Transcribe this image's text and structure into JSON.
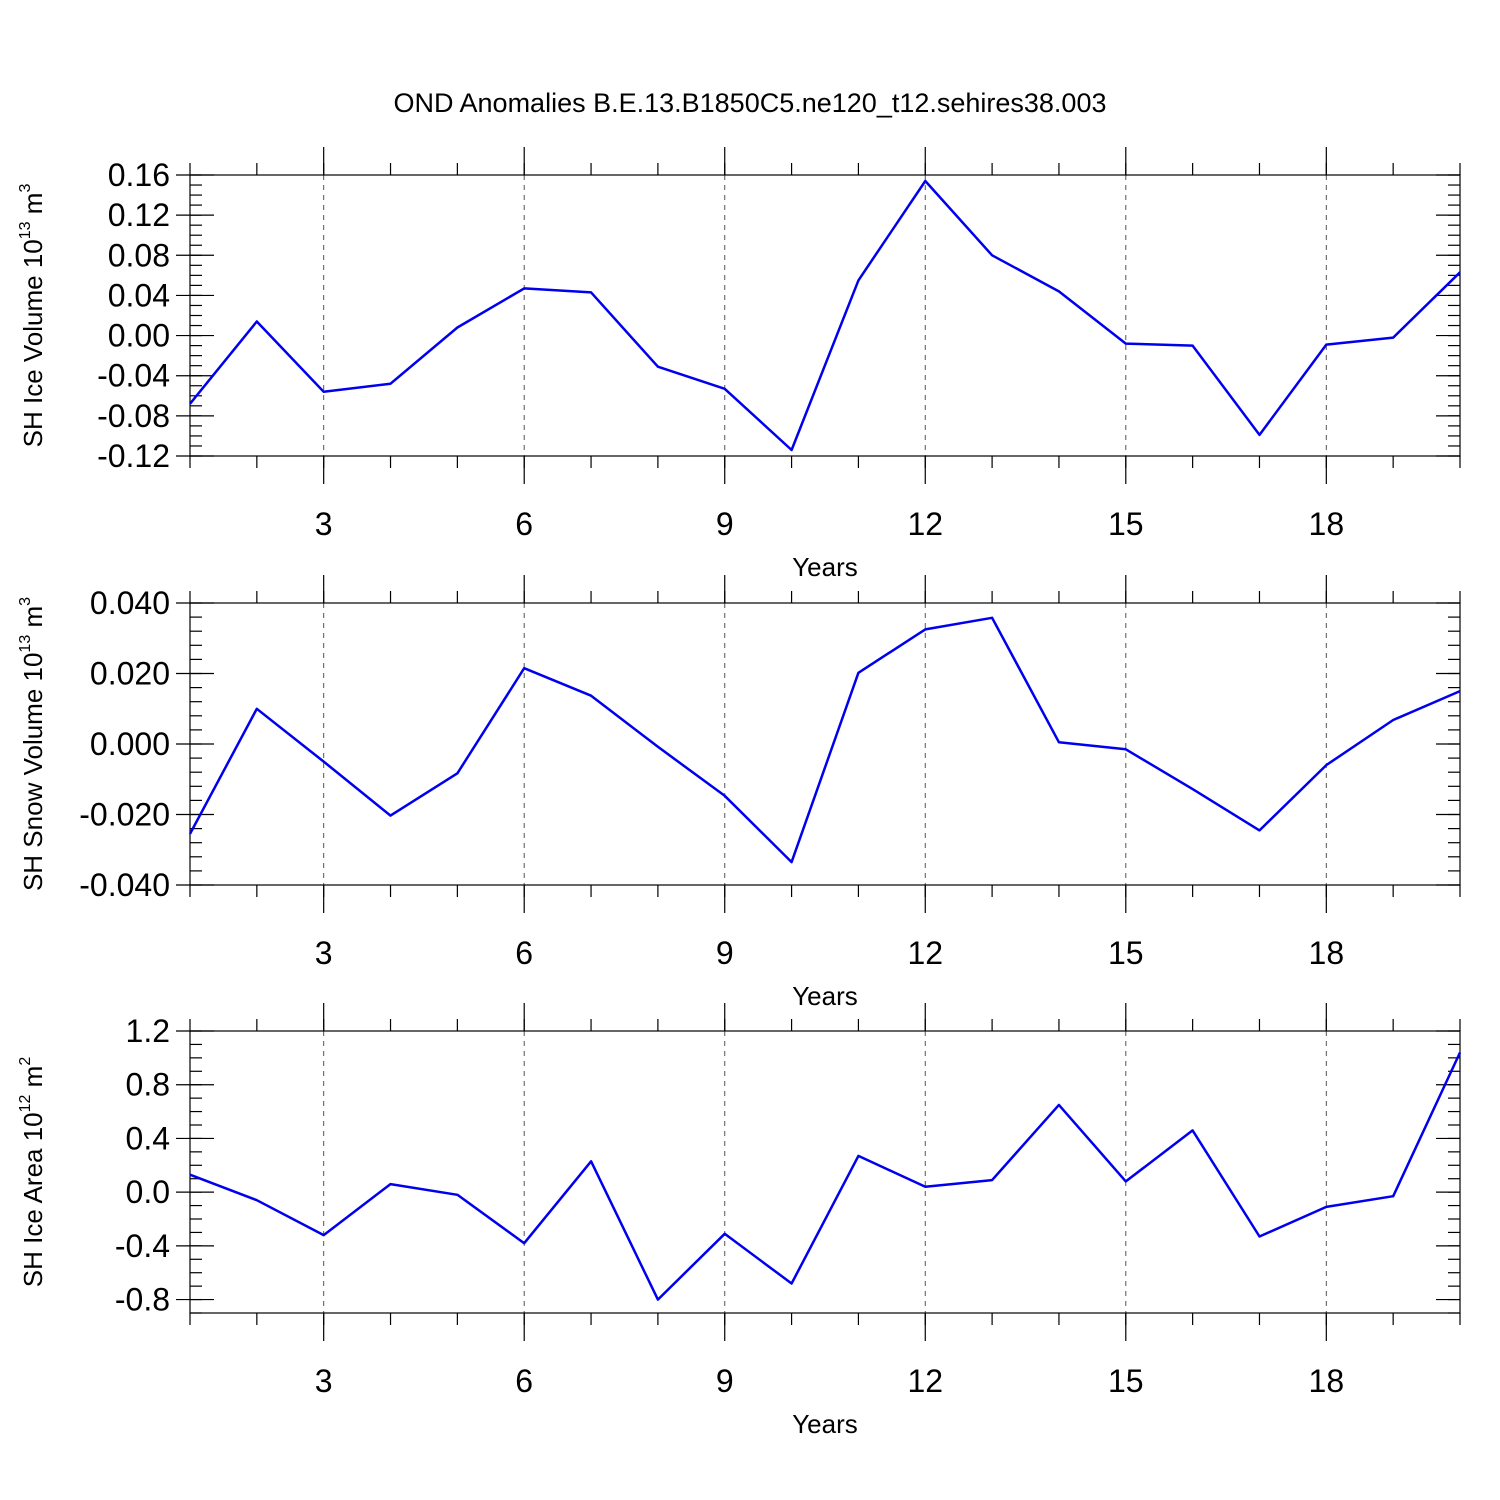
{
  "title": "OND Anomalies B.E.13.B1850C5.ne120_t12.sehires38.003",
  "chart_data": [
    {
      "type": "line",
      "id": "ice-volume",
      "xlabel": "Years",
      "ylabel": {
        "text": "SH Ice Volume 10",
        "exp": "13",
        "unit": " m",
        "unit_exp": "3"
      },
      "xlim": [
        1,
        20
      ],
      "ylim": [
        -0.12,
        0.16
      ],
      "xticks": [
        3,
        6,
        9,
        12,
        15,
        18
      ],
      "xtick_labels": [
        "3",
        "6",
        "9",
        "12",
        "15",
        "18"
      ],
      "yticks": [
        -0.12,
        -0.08,
        -0.04,
        0.0,
        0.04,
        0.08,
        0.12,
        0.16
      ],
      "ytick_labels": [
        "-0.12",
        "-0.08",
        "-0.04",
        "0.00",
        "0.04",
        "0.08",
        "0.12",
        "0.16"
      ],
      "y_minor_step": 0.01,
      "grid": "x-dashed",
      "color": "#0000ee",
      "x": [
        1,
        2,
        3,
        4,
        5,
        6,
        7,
        8,
        9,
        10,
        11,
        12,
        13,
        14,
        15,
        16,
        17,
        18,
        19,
        20
      ],
      "values": [
        -0.068,
        0.014,
        -0.056,
        -0.048,
        0.008,
        0.047,
        0.043,
        -0.031,
        -0.053,
        -0.114,
        0.055,
        0.154,
        0.08,
        0.044,
        -0.008,
        -0.01,
        -0.099,
        -0.009,
        -0.002,
        0.063
      ]
    },
    {
      "type": "line",
      "id": "snow-volume",
      "xlabel": "Years",
      "ylabel": {
        "text": "SH Snow Volume 10",
        "exp": "13",
        "unit": " m",
        "unit_exp": "3"
      },
      "xlim": [
        1,
        20
      ],
      "ylim": [
        -0.04,
        0.04
      ],
      "xticks": [
        3,
        6,
        9,
        12,
        15,
        18
      ],
      "xtick_labels": [
        "3",
        "6",
        "9",
        "12",
        "15",
        "18"
      ],
      "yticks": [
        -0.04,
        -0.02,
        0.0,
        0.02,
        0.04
      ],
      "ytick_labels": [
        "-0.040",
        "-0.020",
        "0.000",
        "0.020",
        "0.040"
      ],
      "y_minor_step": 0.004,
      "grid": "x-dashed",
      "color": "#0000ee",
      "x": [
        1,
        2,
        3,
        4,
        5,
        6,
        7,
        8,
        9,
        10,
        11,
        12,
        13,
        14,
        15,
        16,
        17,
        18,
        19,
        20
      ],
      "values": [
        -0.0255,
        0.01,
        -0.005,
        -0.0203,
        -0.0083,
        0.0215,
        0.0137,
        -0.0008,
        -0.0147,
        -0.0335,
        0.0202,
        0.0325,
        0.0358,
        0.0005,
        -0.0015,
        -0.0128,
        -0.0245,
        -0.006,
        0.0068,
        0.015
      ]
    },
    {
      "type": "line",
      "id": "ice-area",
      "xlabel": "Years",
      "ylabel": {
        "text": "SH Ice Area 10",
        "exp": "12",
        "unit": " m",
        "unit_exp": "2"
      },
      "xlim": [
        1,
        20
      ],
      "ylim": [
        -0.9,
        1.2
      ],
      "xticks": [
        3,
        6,
        9,
        12,
        15,
        18
      ],
      "xtick_labels": [
        "3",
        "6",
        "9",
        "12",
        "15",
        "18"
      ],
      "yticks": [
        -0.8,
        -0.4,
        0.0,
        0.4,
        0.8,
        1.2
      ],
      "ytick_labels": [
        "-0.8",
        "-0.4",
        "0.0",
        "0.4",
        "0.8",
        "1.2"
      ],
      "y_minor_step": 0.1,
      "grid": "x-dashed",
      "color": "#0000ee",
      "x": [
        1,
        2,
        3,
        4,
        5,
        6,
        7,
        8,
        9,
        10,
        11,
        12,
        13,
        14,
        15,
        16,
        17,
        18,
        19,
        20
      ],
      "values": [
        0.13,
        -0.06,
        -0.32,
        0.06,
        -0.02,
        -0.38,
        0.23,
        -0.8,
        -0.31,
        -0.68,
        0.27,
        0.04,
        0.09,
        0.65,
        0.08,
        0.46,
        -0.33,
        -0.11,
        -0.03,
        1.04
      ]
    }
  ]
}
